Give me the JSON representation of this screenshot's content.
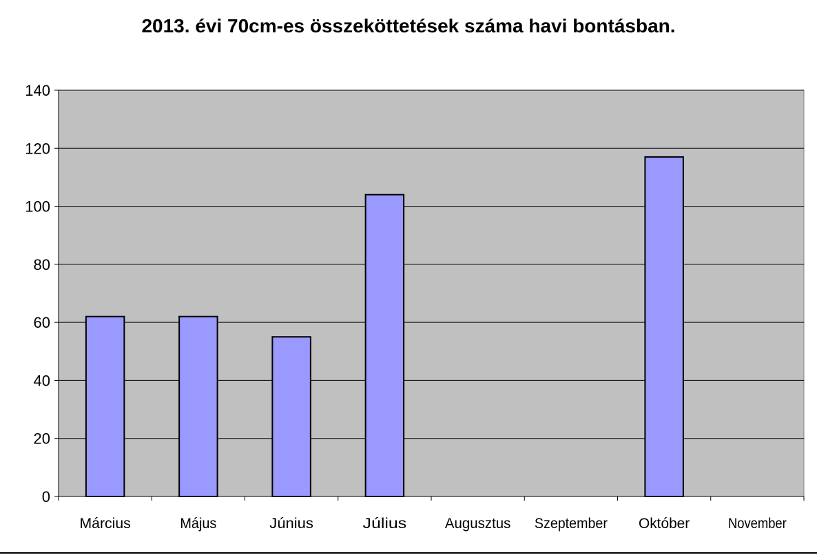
{
  "chart_data": {
    "type": "bar",
    "title": "2013. évi 70cm-es összeköttetések száma havi bontásban.",
    "xlabel": "",
    "ylabel": "",
    "categories": [
      "Március",
      "Május",
      "Június",
      "Július",
      "Augusztus",
      "Szeptember",
      "Október",
      "November"
    ],
    "values": [
      62,
      62,
      55,
      104,
      0,
      0,
      117,
      0
    ],
    "ylim": [
      0,
      140
    ],
    "yticks": [
      0,
      20,
      40,
      60,
      80,
      100,
      120,
      140
    ],
    "grid": true,
    "legend": "none",
    "colors": {
      "bar_fill": "#9999ff",
      "bar_stroke": "#000000",
      "plot_background": "#c0c0c0",
      "gridline": "#000000"
    }
  }
}
